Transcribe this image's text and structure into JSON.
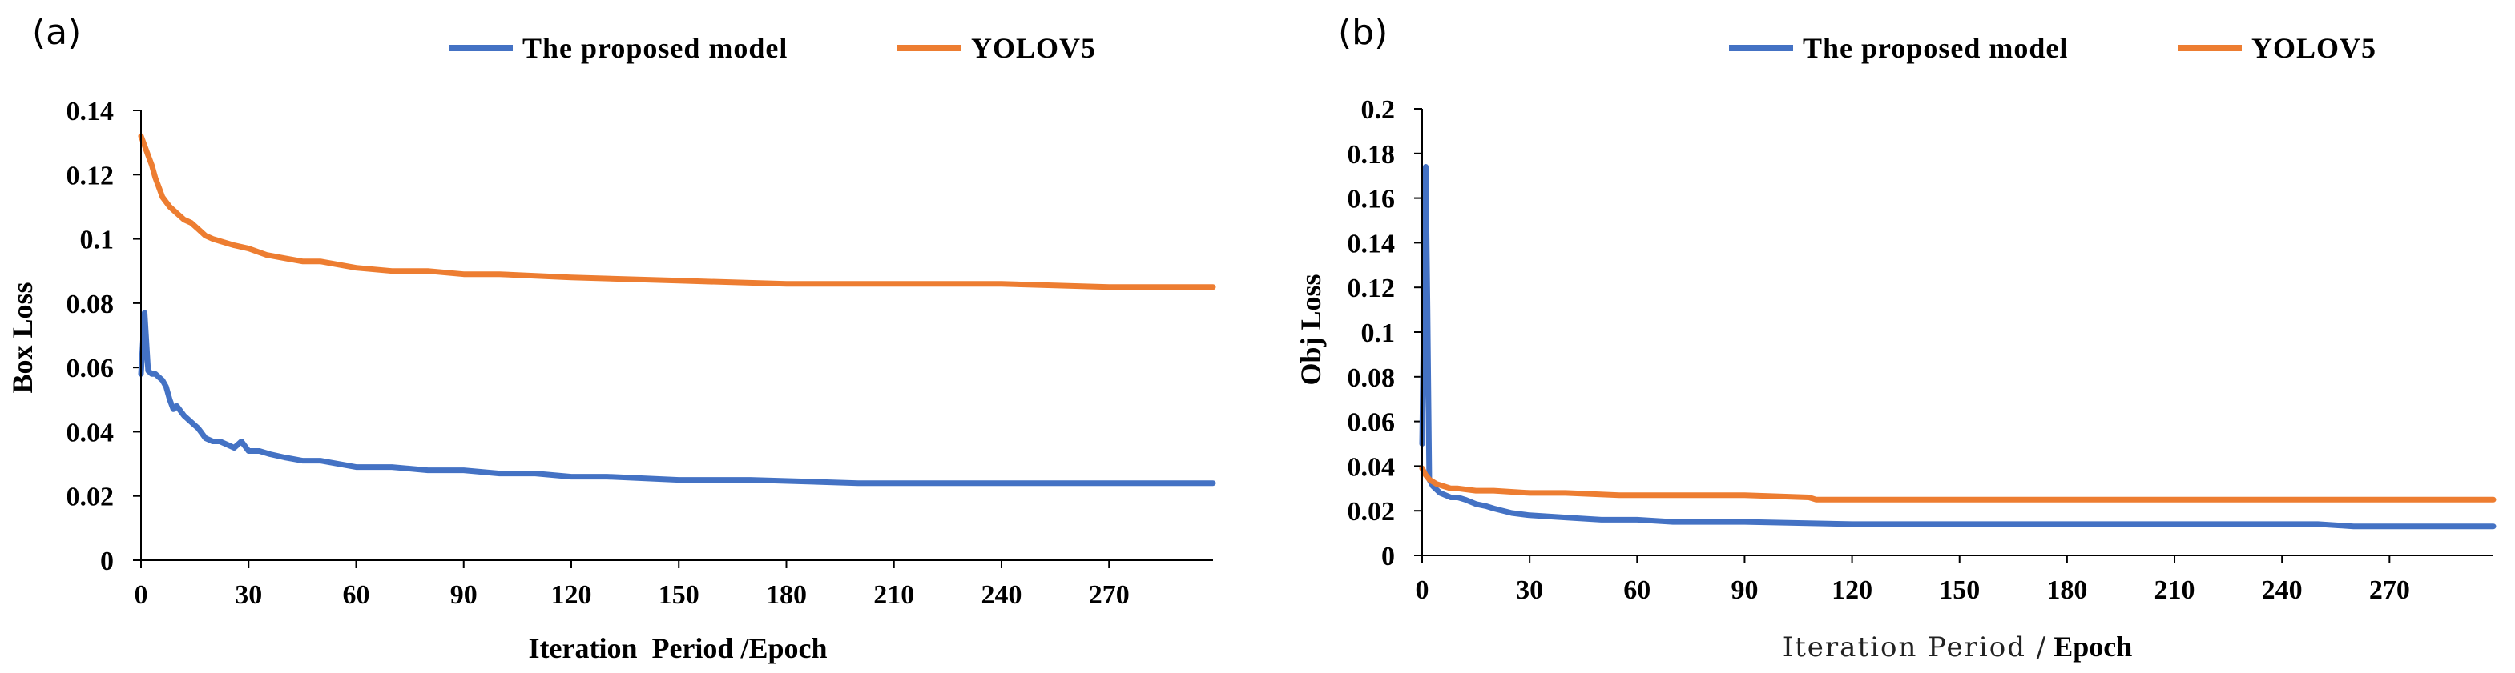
{
  "colors": {
    "proposed": "#4472C4",
    "yolo": "#ED7D31",
    "axis": "#000000"
  },
  "chart_data": [
    {
      "panel_label": "(a)",
      "type": "line",
      "title": "",
      "xlabel": "Iteration  Period /Epoch",
      "ylabel": "Box Loss",
      "xlim": [
        0,
        299
      ],
      "ylim": [
        0,
        0.14
      ],
      "x_ticks": [
        "0",
        "30",
        "60",
        "90",
        "120",
        "150",
        "180",
        "210",
        "240",
        "270"
      ],
      "y_ticks": [
        "0",
        "0.02",
        "0.04",
        "0.06",
        "0.08",
        "0.1",
        "0.12",
        "0.14"
      ],
      "legend_position": "top",
      "series": [
        {
          "name": "The proposed model",
          "x": [
            0,
            1,
            2,
            3,
            4,
            5,
            6,
            7,
            8,
            9,
            10,
            12,
            14,
            16,
            18,
            20,
            22,
            24,
            26,
            28,
            30,
            33,
            36,
            40,
            45,
            50,
            55,
            60,
            70,
            80,
            90,
            100,
            110,
            120,
            130,
            150,
            170,
            200,
            230,
            260,
            299
          ],
          "y": [
            0.058,
            0.077,
            0.059,
            0.058,
            0.058,
            0.057,
            0.056,
            0.054,
            0.05,
            0.047,
            0.048,
            0.045,
            0.043,
            0.041,
            0.038,
            0.037,
            0.037,
            0.036,
            0.035,
            0.037,
            0.034,
            0.034,
            0.033,
            0.032,
            0.031,
            0.031,
            0.03,
            0.029,
            0.029,
            0.028,
            0.028,
            0.027,
            0.027,
            0.026,
            0.026,
            0.025,
            0.025,
            0.024,
            0.024,
            0.024,
            0.024
          ]
        },
        {
          "name": "YOLOV5",
          "x": [
            0,
            1,
            2,
            3,
            4,
            5,
            6,
            8,
            10,
            12,
            14,
            16,
            18,
            20,
            23,
            26,
            30,
            35,
            40,
            45,
            50,
            60,
            70,
            80,
            90,
            100,
            120,
            150,
            180,
            210,
            240,
            270,
            299
          ],
          "y": [
            0.132,
            0.129,
            0.126,
            0.123,
            0.119,
            0.116,
            0.113,
            0.11,
            0.108,
            0.106,
            0.105,
            0.103,
            0.101,
            0.1,
            0.099,
            0.098,
            0.097,
            0.095,
            0.094,
            0.093,
            0.093,
            0.091,
            0.09,
            0.09,
            0.089,
            0.089,
            0.088,
            0.087,
            0.086,
            0.086,
            0.086,
            0.085,
            0.085
          ]
        }
      ]
    },
    {
      "panel_label": "(b)",
      "type": "line",
      "title": "",
      "xlabel_part1": "Iteration Period /",
      "xlabel_part2": "Epoch",
      "ylabel": "Obj Loss",
      "xlim": [
        0,
        299
      ],
      "ylim": [
        0,
        0.2
      ],
      "x_ticks": [
        "0",
        "30",
        "60",
        "90",
        "120",
        "150",
        "180",
        "210",
        "240",
        "270"
      ],
      "y_ticks": [
        "0",
        "0.02",
        "0.04",
        "0.06",
        "0.08",
        "0.1",
        "0.12",
        "0.14",
        "0.16",
        "0.18",
        "0.2"
      ],
      "legend_position": "top",
      "series": [
        {
          "name": "The proposed model",
          "x": [
            0,
            0.5,
            1,
            1.5,
            2,
            3,
            5,
            8,
            10,
            12,
            15,
            18,
            20,
            25,
            30,
            40,
            50,
            60,
            70,
            90,
            120,
            150,
            200,
            250,
            260,
            299
          ],
          "y": [
            0.05,
            0.11,
            0.174,
            0.11,
            0.034,
            0.031,
            0.028,
            0.026,
            0.026,
            0.025,
            0.023,
            0.022,
            0.021,
            0.019,
            0.018,
            0.017,
            0.016,
            0.016,
            0.015,
            0.015,
            0.014,
            0.014,
            0.014,
            0.014,
            0.013,
            0.013
          ]
        },
        {
          "name": "YOLOV5",
          "x": [
            0,
            1,
            2,
            4,
            6,
            8,
            10,
            15,
            20,
            30,
            40,
            55,
            70,
            90,
            108,
            110,
            150,
            200,
            250,
            299
          ],
          "y": [
            0.039,
            0.036,
            0.034,
            0.032,
            0.031,
            0.03,
            0.03,
            0.029,
            0.029,
            0.028,
            0.028,
            0.027,
            0.027,
            0.027,
            0.026,
            0.025,
            0.025,
            0.025,
            0.025,
            0.025
          ]
        }
      ]
    }
  ]
}
